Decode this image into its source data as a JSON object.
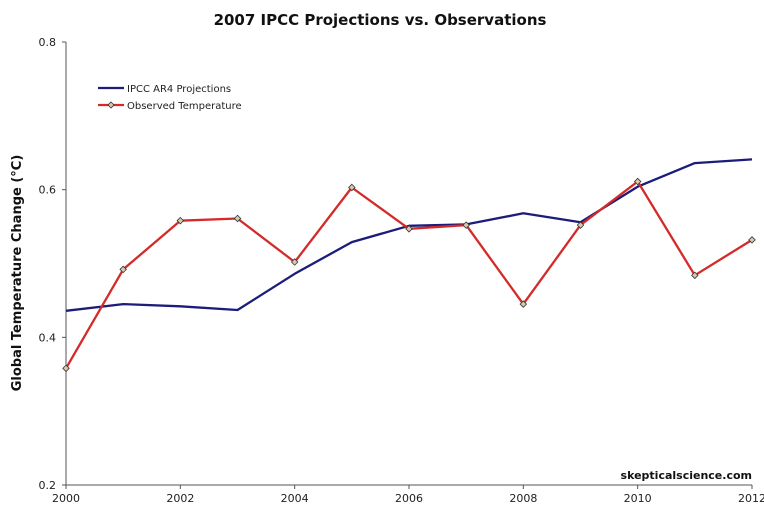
{
  "chart_data": {
    "type": "line",
    "title": "2007 IPCC Projections vs. Observations",
    "xlabel": "",
    "ylabel": "Global Temperature Change (°C)",
    "xlim": [
      2000,
      2012
    ],
    "ylim": [
      0.2,
      0.8
    ],
    "x_ticks": [
      "2000",
      "2002",
      "2004",
      "2006",
      "2008",
      "2010",
      "2012"
    ],
    "y_ticks": [
      "0.2",
      "0.4",
      "0.6",
      "0.8"
    ],
    "grid": false,
    "legend_position": "top-left",
    "x": [
      2000,
      2001,
      2002,
      2003,
      2004,
      2005,
      2006,
      2007,
      2008,
      2009,
      2010,
      2011,
      2012
    ],
    "series": [
      {
        "name": "IPCC AR4 Projections",
        "color": "#1c1c7a",
        "markers": false,
        "values": [
          0.436,
          0.445,
          0.442,
          0.437,
          0.486,
          0.529,
          0.551,
          0.553,
          0.568,
          0.556,
          0.604,
          0.636,
          0.641
        ]
      },
      {
        "name": "Observed Temperature",
        "color": "#d42a2a",
        "markers": true,
        "values": [
          0.358,
          0.492,
          0.558,
          0.561,
          0.502,
          0.603,
          0.547,
          0.552,
          0.445,
          0.552,
          0.611,
          0.484,
          0.532
        ]
      }
    ],
    "watermark": "skepticalscience.com"
  }
}
